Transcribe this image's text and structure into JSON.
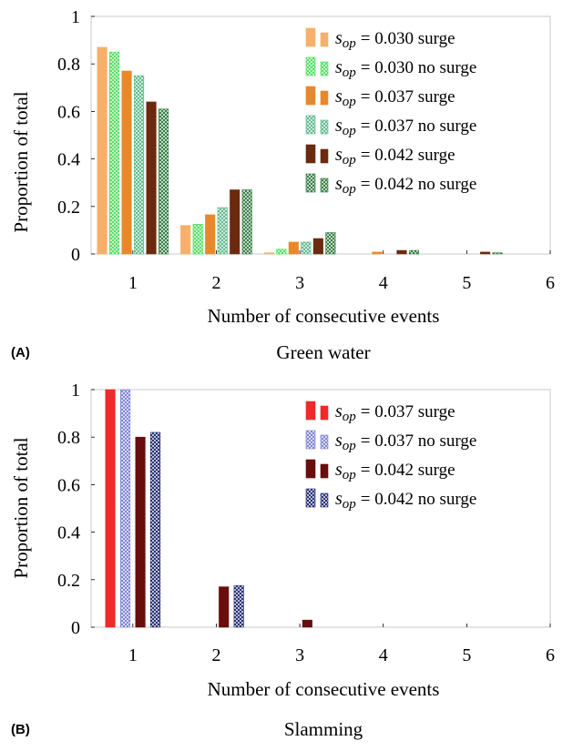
{
  "figure": {
    "panels": [
      {
        "letter": "(A)",
        "caption": "Green water"
      },
      {
        "letter": "(B)",
        "caption": "Slamming"
      }
    ]
  },
  "chart_data": [
    {
      "type": "bar",
      "title": "",
      "xlabel": "Number of consecutive events",
      "ylabel": "Proportion of total",
      "categories": [
        "1",
        "2",
        "3",
        "4",
        "5",
        "6"
      ],
      "xlim": [
        0.5,
        6
      ],
      "ylim": [
        0,
        1
      ],
      "yticks": [
        "0",
        "0.2",
        "0.4",
        "0.6",
        "0.8",
        "1"
      ],
      "legend_position": "top-right",
      "grid": false,
      "series": [
        {
          "name": "s_op = 0.030 surge",
          "sop": "= 0.030 surge",
          "color": "#f6b06a",
          "pattern": "solid",
          "values": [
            0.87,
            0.12,
            0.005,
            0.0,
            0.0,
            0.0
          ]
        },
        {
          "name": "s_op = 0.030 no surge",
          "sop": "= 0.030 no surge",
          "color": "#4bde5a",
          "pattern": "crosshatch",
          "values": [
            0.85,
            0.125,
            0.02,
            0.0,
            0.0,
            0.0
          ]
        },
        {
          "name": "s_op = 0.037 surge",
          "sop": "= 0.037 surge",
          "color": "#e8882a",
          "pattern": "solid",
          "values": [
            0.77,
            0.165,
            0.05,
            0.008,
            0.0,
            0.0
          ]
        },
        {
          "name": "s_op = 0.037 no surge",
          "sop": "= 0.037 no surge",
          "color": "#5bb88a",
          "pattern": "crosshatch",
          "values": [
            0.75,
            0.195,
            0.05,
            0.0,
            0.0,
            0.0
          ]
        },
        {
          "name": "s_op = 0.042 surge",
          "sop": "= 0.042 surge",
          "color": "#6b2a0e",
          "pattern": "solid",
          "values": [
            0.64,
            0.27,
            0.065,
            0.015,
            0.008,
            0.0
          ]
        },
        {
          "name": "s_op = 0.042 no surge",
          "sop": "= 0.042 no surge",
          "color": "#2e7a3c",
          "pattern": "crosshatch",
          "values": [
            0.61,
            0.27,
            0.09,
            0.015,
            0.005,
            0.0
          ]
        }
      ]
    },
    {
      "type": "bar",
      "title": "",
      "xlabel": "Number of consecutive events",
      "ylabel": "Proportion of total",
      "categories": [
        "1",
        "2",
        "3",
        "4",
        "5",
        "6"
      ],
      "xlim": [
        0.5,
        6
      ],
      "ylim": [
        0,
        1
      ],
      "yticks": [
        "0",
        "0.2",
        "0.4",
        "0.6",
        "0.8",
        "1"
      ],
      "legend_position": "top-right",
      "grid": false,
      "series": [
        {
          "name": "s_op = 0.037 surge",
          "sop": "= 0.037 surge",
          "color": "#ee2a2a",
          "pattern": "solid",
          "values": [
            1.0,
            0.0,
            0.0,
            0.0,
            0.0,
            0.0
          ]
        },
        {
          "name": "s_op = 0.037 no surge",
          "sop": "= 0.037 no surge",
          "color": "#7b80d2",
          "pattern": "crosshatch",
          "values": [
            1.0,
            0.0,
            0.0,
            0.0,
            0.0,
            0.0
          ]
        },
        {
          "name": "s_op = 0.042 surge",
          "sop": "= 0.042 surge",
          "color": "#6a0d0d",
          "pattern": "solid",
          "values": [
            0.8,
            0.17,
            0.03,
            0.0,
            0.0,
            0.0
          ]
        },
        {
          "name": "s_op = 0.042 no surge",
          "sop": "= 0.042 no surge",
          "color": "#1e2870",
          "pattern": "crosshatch",
          "values": [
            0.82,
            0.175,
            0.0,
            0.0,
            0.0,
            0.0
          ]
        }
      ]
    }
  ]
}
